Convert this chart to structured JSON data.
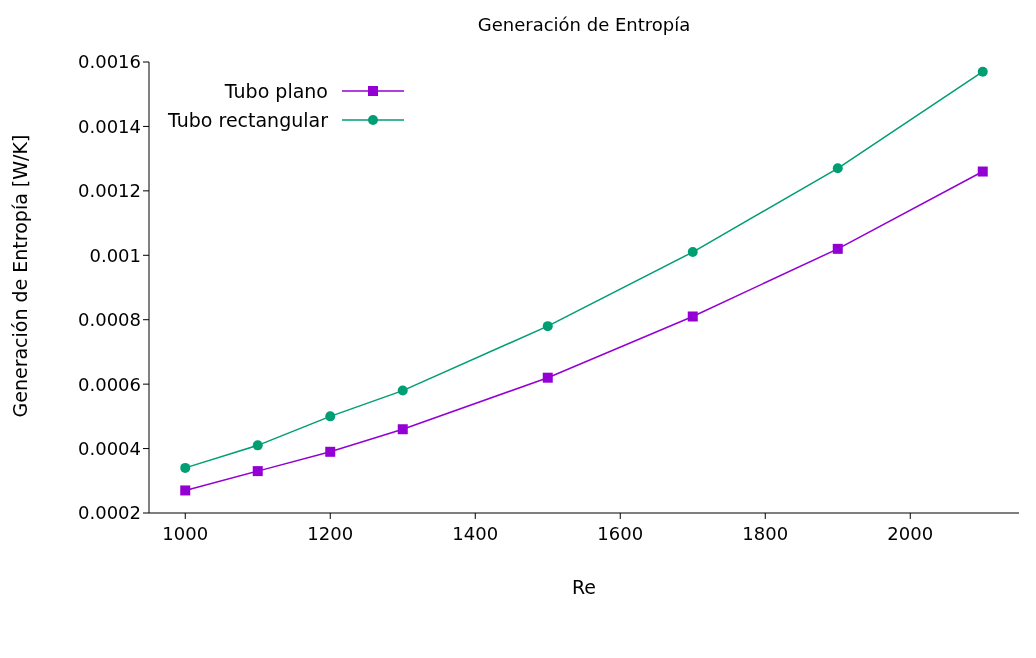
{
  "chart_data": {
    "type": "line",
    "title": "Generación de Entropía",
    "xlabel": "Re",
    "ylabel": "Generación de Entropía [W/K]",
    "x": [
      1000,
      1100,
      1200,
      1300,
      1500,
      1700,
      1900,
      2100
    ],
    "series": [
      {
        "name": "Tubo plano",
        "color": "#9400d3",
        "marker": "square",
        "values": [
          0.00027,
          0.00033,
          0.00039,
          0.00046,
          0.00062,
          0.00081,
          0.00102,
          0.00126
        ]
      },
      {
        "name": "Tubo rectangular",
        "color": "#009e73",
        "marker": "circle",
        "values": [
          0.00034,
          0.00041,
          0.0005,
          0.00058,
          0.00078,
          0.00101,
          0.00127,
          0.00157
        ]
      }
    ],
    "xlim": [
      950,
      2150
    ],
    "xticks": [
      1000,
      1200,
      1400,
      1600,
      1800,
      2000
    ],
    "ylim": [
      0.0002,
      0.0016
    ],
    "yticks": [
      0.0002,
      0.0004,
      0.0006,
      0.0008,
      0.001,
      0.0012,
      0.0014,
      0.0016
    ],
    "grid": false,
    "legend": "top left",
    "line_style": "solid"
  }
}
